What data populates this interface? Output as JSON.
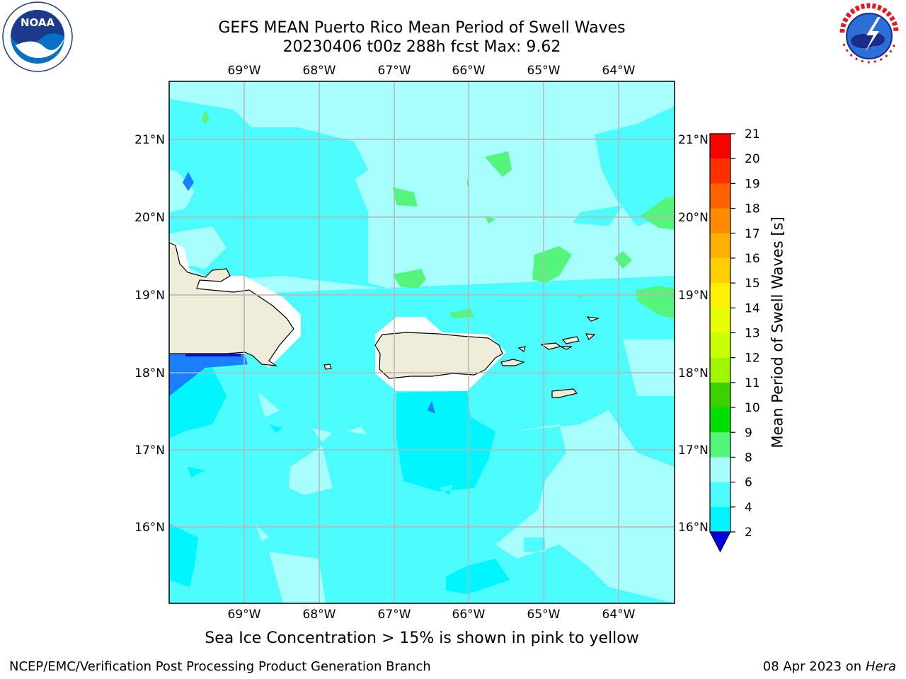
{
  "header": {
    "title_line1": "GEFS MEAN Puerto Rico Mean Period of Swell Waves",
    "title_line2": "20230406 t00z 288h fcst   Max: 9.62"
  },
  "logos": {
    "left": "noaa-logo",
    "right": "nws-logo"
  },
  "map": {
    "lon_labels": [
      "69°W",
      "68°W",
      "67°W",
      "66°W",
      "65°W",
      "64°W"
    ],
    "lat_labels": [
      "21°N",
      "20°N",
      "19°N",
      "18°N",
      "17°N",
      "16°N"
    ],
    "colors": {
      "ocean_light": "#a6fffc",
      "ocean_mid": "#4cfcfc",
      "ocean_cyan": "#00f5ff",
      "ocean_blue": "#1a7fff",
      "land": "#efecda",
      "green": "#55f57b",
      "grid": "#b5b5b5"
    }
  },
  "colorbar": {
    "label": "Mean Period of Swell Waves [s]",
    "ticks": [
      "21",
      "20",
      "19",
      "18",
      "17",
      "16",
      "15",
      "14",
      "13",
      "12",
      "11",
      "10",
      "9",
      "8",
      "6",
      "4",
      "2"
    ],
    "colors": [
      "#ff0000",
      "#ff3000",
      "#ff6000",
      "#ff8c00",
      "#ffb000",
      "#ffd000",
      "#fff000",
      "#e8ff00",
      "#c8ff00",
      "#a0f500",
      "#3cd200",
      "#00e000",
      "#55f57b",
      "#a6fffc",
      "#4cfcfc",
      "#00f5ff",
      "#0073ff",
      "#0000e5"
    ]
  },
  "footer": {
    "note": "Sea Ice Concentration > 15% is shown in pink to yellow",
    "left": "NCEP/EMC/Verification Post Processing Product Generation Branch",
    "right_date": "08 Apr 2023 on ",
    "right_system": "Hera"
  }
}
